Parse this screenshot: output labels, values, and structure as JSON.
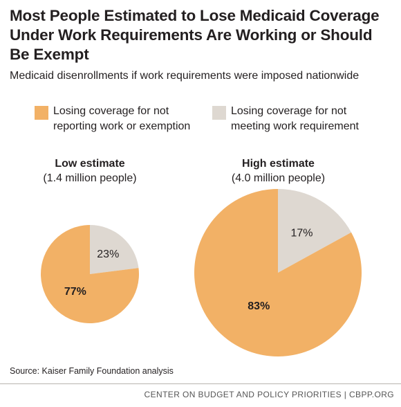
{
  "header": {
    "title": "Most People Estimated to Lose Medicaid Coverage Under Work Requirements Are Working or Should Be Exempt",
    "subtitle": "Medicaid disenrollments if work requirements were imposed nationwide"
  },
  "legend": [
    {
      "label": "Losing coverage for not reporting work or exemption",
      "color": "#f2b166"
    },
    {
      "label": "Losing coverage for not meeting work requirement",
      "color": "#ded8d1"
    }
  ],
  "chart_data": [
    {
      "type": "pie",
      "title": "Low estimate",
      "subtitle": "(1.4 million people)",
      "slices": [
        {
          "label": "Losing coverage for not reporting work or exemption",
          "value": 77,
          "display": "77%",
          "color": "#f2b166"
        },
        {
          "label": "Losing coverage for not meeting work requirement",
          "value": 23,
          "display": "23%",
          "color": "#ded8d1"
        }
      ]
    },
    {
      "type": "pie",
      "title": "High estimate",
      "subtitle": "(4.0 million people)",
      "slices": [
        {
          "label": "Losing coverage for not reporting work or exemption",
          "value": 83,
          "display": "83%",
          "color": "#f2b166"
        },
        {
          "label": "Losing coverage for not meeting work requirement",
          "value": 17,
          "display": "17%",
          "color": "#ded8d1"
        }
      ]
    }
  ],
  "source": "Source: Kaiser Family Foundation analysis",
  "footer": "CENTER ON BUDGET AND POLICY PRIORITIES | CBPP.ORG"
}
